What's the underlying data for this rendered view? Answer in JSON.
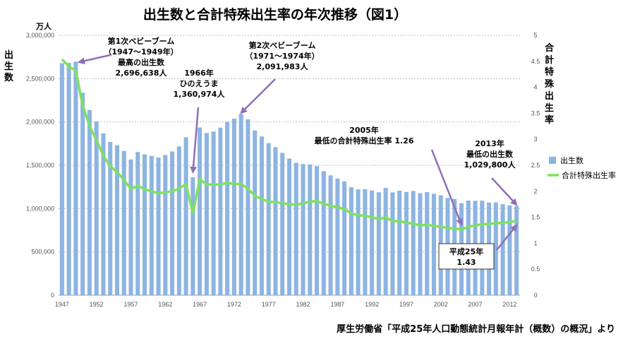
{
  "title": "出生数と合計特殊出生率の年次推移（図1）",
  "source": "厚生労働省「平成25年人口動態統計月報年計（概数）の概況」より",
  "chart_data": {
    "type": "bar+line",
    "title": "出生数と合計特殊出生率の年次推移（図1）",
    "left_axis": {
      "unit": "万人",
      "label": "出生数",
      "ylim": [
        0,
        3000000
      ],
      "ticks": [
        "0",
        "500,000",
        "1,000,000",
        "1,500,000",
        "2,000,000",
        "2,500,000",
        "3,000,000"
      ]
    },
    "right_axis": {
      "label": "合計特殊出生率",
      "ylim": [
        0,
        5
      ],
      "ticks": [
        "0",
        "0.5",
        "1",
        "1.5",
        "2",
        "2.5",
        "3",
        "3.5",
        "4",
        "4.5",
        "5"
      ]
    },
    "x_tick_labels": [
      "1947",
      "1952",
      "1957",
      "1962",
      "1967",
      "1972",
      "1977",
      "1982",
      "1987",
      "1992",
      "1997",
      "2002",
      "2007",
      "2012"
    ],
    "years": [
      1947,
      1948,
      1949,
      1950,
      1951,
      1952,
      1953,
      1954,
      1955,
      1956,
      1957,
      1958,
      1959,
      1960,
      1961,
      1962,
      1963,
      1964,
      1965,
      1966,
      1967,
      1968,
      1969,
      1970,
      1971,
      1972,
      1973,
      1974,
      1975,
      1976,
      1977,
      1978,
      1979,
      1980,
      1981,
      1982,
      1983,
      1984,
      1985,
      1986,
      1987,
      1988,
      1989,
      1990,
      1991,
      1992,
      1993,
      1994,
      1995,
      1996,
      1997,
      1998,
      1999,
      2000,
      2001,
      2002,
      2003,
      2004,
      2005,
      2006,
      2007,
      2008,
      2009,
      2010,
      2011,
      2012,
      2013
    ],
    "series": [
      {
        "name": "出生数",
        "type": "bar",
        "color": "#8DB4E2",
        "values": [
          2678792,
          2681624,
          2696638,
          2337507,
          2137689,
          2005162,
          1868040,
          1769580,
          1730692,
          1665278,
          1566713,
          1653469,
          1626088,
          1606041,
          1589372,
          1618616,
          1659521,
          1716761,
          1823697,
          1360974,
          1935647,
          1871839,
          1889815,
          1934239,
          2000973,
          2038682,
          2091983,
          2029989,
          1901440,
          1832617,
          1755100,
          1708643,
          1642580,
          1576889,
          1529455,
          1515392,
          1508687,
          1489780,
          1431577,
          1382946,
          1346658,
          1314006,
          1246802,
          1221585,
          1223245,
          1208989,
          1188282,
          1238328,
          1187064,
          1206555,
          1191665,
          1203147,
          1177669,
          1190547,
          1170662,
          1153855,
          1123610,
          1110721,
          1062530,
          1092674,
          1089818,
          1091156,
          1070035,
          1071304,
          1050806,
          1037231,
          1029800
        ]
      },
      {
        "name": "合計特殊出生率",
        "type": "line",
        "color": "#7DE25E",
        "values": [
          4.54,
          4.4,
          4.32,
          3.65,
          3.26,
          2.98,
          2.69,
          2.48,
          2.37,
          2.22,
          2.04,
          2.11,
          2.04,
          2.0,
          1.96,
          1.98,
          2.0,
          2.05,
          2.14,
          1.58,
          2.23,
          2.13,
          2.13,
          2.13,
          2.16,
          2.14,
          2.14,
          2.05,
          1.91,
          1.85,
          1.8,
          1.79,
          1.77,
          1.75,
          1.74,
          1.77,
          1.8,
          1.81,
          1.76,
          1.72,
          1.69,
          1.66,
          1.57,
          1.54,
          1.53,
          1.5,
          1.46,
          1.5,
          1.42,
          1.43,
          1.39,
          1.38,
          1.34,
          1.36,
          1.33,
          1.32,
          1.29,
          1.29,
          1.26,
          1.32,
          1.34,
          1.37,
          1.37,
          1.39,
          1.39,
          1.41,
          1.43
        ]
      }
    ],
    "legend_position": "right",
    "annotations": [
      {
        "lines": [
          "第1次ベビーブーム",
          "（1947〜1949年）",
          "最高の出生数",
          "2,696,638人"
        ],
        "target_year": 1949,
        "target_value": 4.32
      },
      {
        "lines": [
          "1966年",
          "ひのえうま",
          "1,360,974人"
        ],
        "target_year": 1966,
        "target_value": 1.58
      },
      {
        "lines": [
          "第2次ベビーブーム",
          "（1971〜1974年）",
          "2,091,983人"
        ],
        "target_year": 1973,
        "target_value": 2.14
      },
      {
        "lines": [
          "2005年",
          "最低の合計特殊出生率 1.26"
        ],
        "target_year": 2005,
        "target_value": 1.26
      },
      {
        "lines": [
          "2013年",
          "最低の出生数",
          "1,029,800人"
        ],
        "target_year": 2013,
        "target_value": 1.43
      },
      {
        "lines": [
          "平成25年",
          "1.43"
        ],
        "target_year": 2013,
        "target_value": 1.43,
        "boxed": true
      }
    ]
  }
}
